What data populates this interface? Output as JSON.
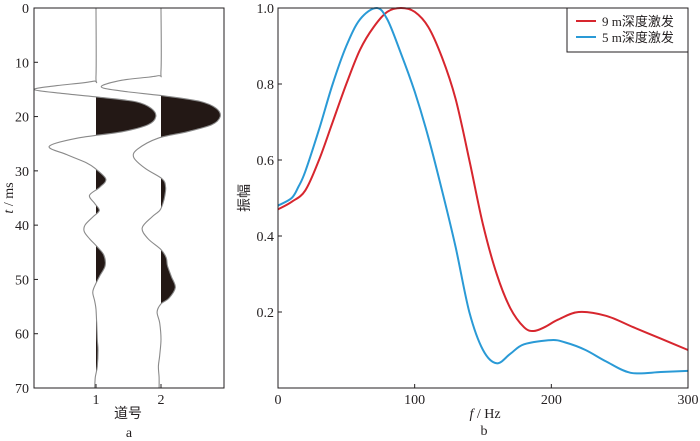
{
  "chart_data": [
    {
      "type": "line",
      "panel_label": "a",
      "title": "",
      "xlabel": "道号",
      "ylabel_italic": "t",
      "ylabel_unit": " / ms",
      "ylim": [
        0,
        70
      ],
      "y_inverted": true,
      "yticks": [
        "0",
        "10",
        "20",
        "30",
        "40",
        "50",
        "60",
        "70"
      ],
      "xticks": [
        "1",
        "2"
      ],
      "fill_positive": true,
      "line_color": "#8a8a8a",
      "fill_color": "#231815",
      "traces": [
        {
          "name": "1",
          "t": [
            0,
            12.5,
            13.5,
            14.3,
            15,
            15.7,
            16.5,
            17.3,
            18.5,
            20,
            21.5,
            22.8,
            24,
            25.5,
            27,
            28.5,
            29.5,
            31.5,
            33,
            34.5,
            36,
            37.3,
            38.5,
            40,
            41.2,
            42.5,
            44,
            45.5,
            47.5,
            49.5,
            51.5,
            52.5,
            54,
            55.5,
            58,
            61,
            63,
            66,
            68,
            70
          ],
          "amp": [
            0,
            0,
            -0.05,
            -0.6,
            -0.95,
            -0.55,
            0.1,
            0.62,
            0.85,
            0.92,
            0.8,
            0.4,
            -0.3,
            -0.72,
            -0.45,
            -0.15,
            -0.02,
            0.15,
            0.06,
            -0.1,
            -0.02,
            0.05,
            -0.05,
            -0.17,
            -0.18,
            -0.1,
            0.02,
            0.12,
            0.14,
            0.05,
            -0.03,
            -0.05,
            -0.02,
            0.0,
            0.01,
            0.02,
            0.03,
            0.02,
            -0.01,
            -0.02
          ]
        },
        {
          "name": "2",
          "t": [
            0,
            11.5,
            12.5,
            13.3,
            14.5,
            15.3,
            16.2,
            17.2,
            18.5,
            20,
            21.5,
            22.8,
            24,
            26,
            27.5,
            29.5,
            31.5,
            33,
            34.5,
            36,
            37.3,
            38.5,
            40.5,
            42.5,
            44.5,
            46,
            47.5,
            49.5,
            51.5,
            53.5,
            54.5,
            56,
            58,
            61,
            64,
            66,
            68,
            70
          ],
          "amp": [
            0,
            0,
            -0.06,
            -0.6,
            -0.92,
            -0.6,
            0.05,
            0.6,
            0.85,
            0.91,
            0.78,
            0.4,
            -0.05,
            -0.36,
            -0.42,
            -0.25,
            0.02,
            0.07,
            0.06,
            0.03,
            -0.02,
            -0.14,
            -0.29,
            -0.2,
            0.0,
            0.08,
            0.1,
            0.16,
            0.22,
            0.12,
            0.0,
            -0.06,
            -0.02,
            0.0,
            -0.02,
            -0.04,
            -0.03,
            -0.03
          ]
        }
      ]
    },
    {
      "type": "line",
      "panel_label": "b",
      "title": "",
      "xlabel_italic": "f",
      "xlabel_unit": " / Hz",
      "ylabel": "振幅",
      "xlim": [
        0,
        300
      ],
      "ylim": [
        0,
        1.0
      ],
      "xticks": [
        "0",
        "100",
        "200",
        "300"
      ],
      "yticks": [
        "0.2",
        "0.4",
        "0.6",
        "0.8",
        "1.0"
      ],
      "legend_position": "top-right",
      "series": [
        {
          "name": "9 m深度激发",
          "color": "#d7262e",
          "x": [
            0,
            10,
            20,
            30,
            40,
            50,
            60,
            70,
            80,
            90,
            100,
            110,
            120,
            130,
            140,
            150,
            160,
            170,
            180,
            187,
            195,
            205,
            220,
            240,
            260,
            280,
            300
          ],
          "y": [
            0.47,
            0.49,
            0.52,
            0.6,
            0.7,
            0.8,
            0.89,
            0.95,
            0.99,
            1.0,
            0.99,
            0.95,
            0.87,
            0.76,
            0.6,
            0.43,
            0.3,
            0.21,
            0.16,
            0.15,
            0.16,
            0.18,
            0.2,
            0.19,
            0.16,
            0.13,
            0.1
          ]
        },
        {
          "name": "5 m深度激发",
          "color": "#2a9ad6",
          "x": [
            0,
            10,
            15,
            20,
            30,
            40,
            50,
            60,
            72,
            80,
            90,
            100,
            110,
            120,
            130,
            140,
            150,
            160,
            170,
            180,
            200,
            210,
            225,
            240,
            258,
            280,
            300
          ],
          "y": [
            0.48,
            0.5,
            0.53,
            0.57,
            0.68,
            0.8,
            0.9,
            0.97,
            1.0,
            0.97,
            0.88,
            0.78,
            0.66,
            0.52,
            0.37,
            0.2,
            0.1,
            0.065,
            0.09,
            0.115,
            0.126,
            0.12,
            0.1,
            0.07,
            0.04,
            0.042,
            0.045
          ]
        }
      ]
    }
  ]
}
